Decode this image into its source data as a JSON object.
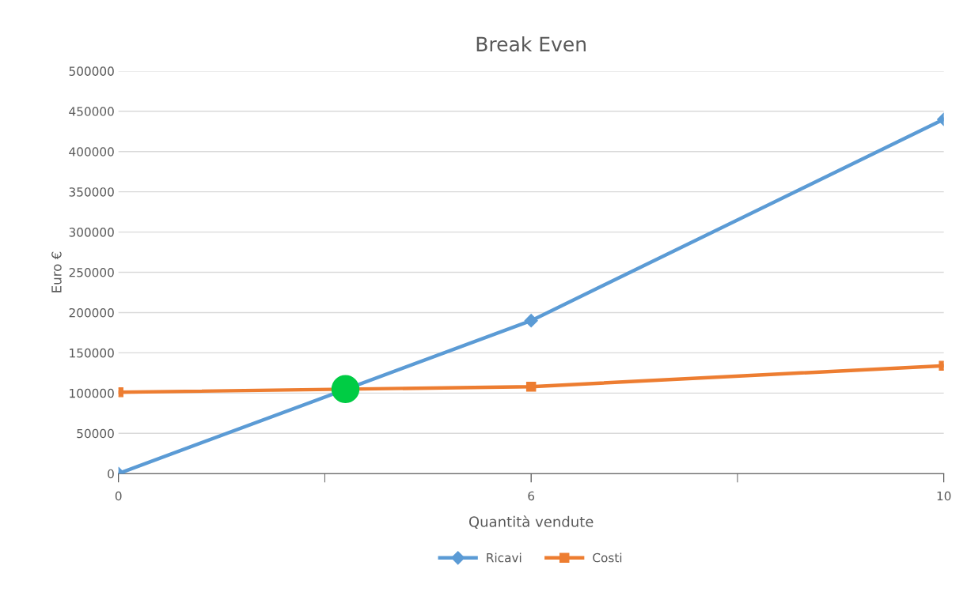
{
  "chart_data": {
    "type": "line",
    "title": "Break Even",
    "xlabel": "Quantità vendute",
    "ylabel": "Euro €",
    "categories": [
      "0",
      null,
      null,
      null,
      null,
      null,
      null,
      null,
      null,
      null,
      null,
      null,
      null,
      null,
      null,
      null,
      null,
      null,
      null,
      null,
      "6",
      null,
      null,
      null,
      null,
      null,
      null,
      null,
      null,
      null,
      null,
      null,
      null,
      null,
      null,
      null,
      null,
      null,
      null,
      null,
      "10"
    ],
    "series": [
      {
        "name": "Ricavi",
        "color": "#5b9bd5",
        "marker": "diamond",
        "values": [
          0,
          null,
          null,
          null,
          null,
          null,
          null,
          null,
          null,
          null,
          null,
          null,
          null,
          null,
          null,
          null,
          null,
          null,
          null,
          null,
          190000,
          null,
          null,
          null,
          null,
          null,
          null,
          null,
          null,
          null,
          null,
          null,
          null,
          null,
          null,
          null,
          null,
          null,
          null,
          null,
          440000
        ]
      },
      {
        "name": "Costi",
        "color": "#ed7d31",
        "marker": "square",
        "values": [
          101000,
          null,
          null,
          null,
          null,
          null,
          null,
          null,
          null,
          null,
          null,
          null,
          null,
          null,
          null,
          null,
          null,
          null,
          null,
          null,
          108000,
          null,
          null,
          null,
          null,
          null,
          null,
          null,
          null,
          null,
          null,
          null,
          null,
          null,
          null,
          null,
          null,
          null,
          null,
          null,
          134000
        ]
      },
      {
        "type": "scatter",
        "color": "#00cc44",
        "marker": "circle",
        "values": [
          null,
          null,
          null,
          null,
          null,
          null,
          null,
          null,
          null,
          null,
          null,
          105000,
          null,
          null,
          null,
          null,
          null,
          null,
          null,
          null,
          null,
          null,
          null,
          null,
          null,
          null,
          null,
          null,
          null,
          null,
          null,
          null,
          null,
          null,
          null,
          null,
          null,
          null,
          null,
          null,
          null
        ]
      }
    ],
    "ylim": [
      0,
      500000
    ],
    "yticks": [
      0,
      50000,
      100000,
      150000,
      200000,
      250000,
      300000,
      350000,
      400000,
      450000,
      500000
    ],
    "grid": "y",
    "legend": "bottom"
  }
}
